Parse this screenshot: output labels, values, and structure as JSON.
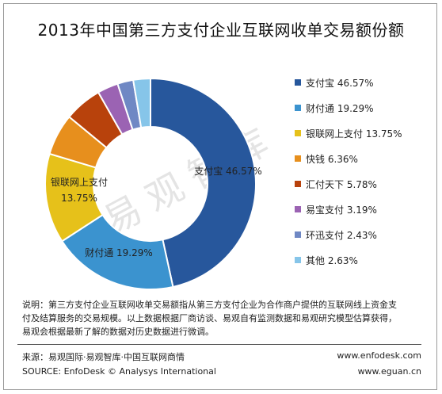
{
  "title": "2013年中国第三方支付企业互联网收单交易额份额",
  "watermark": "易观智库",
  "chart_data": {
    "type": "pie",
    "donut": true,
    "title": "2013年中国第三方支付企业互联网收单交易额份额",
    "categories": [
      "支付宝",
      "财付通",
      "银联网上支付",
      "快钱",
      "汇付天下",
      "易宝支付",
      "环迅支付",
      "其他"
    ],
    "values": [
      46.57,
      19.29,
      13.75,
      6.36,
      5.78,
      3.19,
      2.43,
      2.63
    ],
    "value_labels": [
      "46.57%",
      "19.29%",
      "13.75%",
      "6.36%",
      "5.78%",
      "3.19%",
      "2.43%",
      "2.63%"
    ],
    "colors": [
      "#27579c",
      "#3b93cf",
      "#e6c11a",
      "#e78f1d",
      "#b8420c",
      "#9b63b3",
      "#6f88c4",
      "#86c5e9"
    ],
    "legend": "right",
    "slice_labels": [
      {
        "lines": [
          "支付宝 46.57%"
        ]
      },
      {
        "lines": [
          "财付通 19.29%"
        ]
      },
      {
        "lines": [
          "银联网上支付",
          "13.75%"
        ]
      }
    ]
  },
  "legend_items": [
    "支付宝 46.57%",
    "财付通 19.29%",
    "银联网上支付 13.75%",
    "快钱 6.36%",
    "汇付天下 5.78%",
    "易宝支付 3.19%",
    "环迅支付 2.43%",
    "其他 2.63%"
  ],
  "note": {
    "label": "说明：",
    "line1": "说明：第三方支付企业互联网收单交易额指从第三方支付企业为合作商户提供的互联网线上资金支",
    "line2": "付及结算服务的交易规模。以上数据根据厂商访谈、易观自有监测数据和易观研究模型估算获得，",
    "line3": "易观会根据最新了解的数据对历史数据进行微调。"
  },
  "footer": {
    "source_cn": "来源：易观国际·易观智库·中国互联网商情",
    "source_en": "SOURCE: EnfoDesk © Analysys International",
    "url1": "www.enfodesk.com",
    "url2": "www.eguan.cn"
  }
}
